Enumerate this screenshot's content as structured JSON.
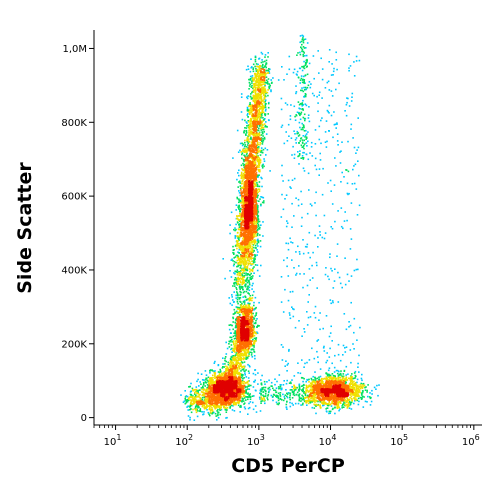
{
  "chart_data": {
    "type": "scatter",
    "title": "",
    "xlabel": "CD5 PerCP",
    "ylabel": "Side Scatter",
    "x_scale": "log",
    "xlim": [
      5,
      1300000
    ],
    "ylim": [
      -20000,
      1050000
    ],
    "x_ticks": [
      {
        "base": "10",
        "exp": "1",
        "value": 10
      },
      {
        "base": "10",
        "exp": "2",
        "value": 100
      },
      {
        "base": "10",
        "exp": "3",
        "value": 1000
      },
      {
        "base": "10",
        "exp": "4",
        "value": 10000
      },
      {
        "base": "10",
        "exp": "5",
        "value": 100000
      },
      {
        "base": "10",
        "exp": "6",
        "value": 1000000
      }
    ],
    "y_ticks": [
      {
        "label": "0",
        "value": 0
      },
      {
        "label": "200K",
        "value": 200000
      },
      {
        "label": "400K",
        "value": 400000
      },
      {
        "label": "600K",
        "value": 600000
      },
      {
        "label": "800K",
        "value": 800000
      },
      {
        "label": "1,0M",
        "value": 1000000
      }
    ],
    "grid": false,
    "colormap": "density (blue → cyan → green → yellow → red)",
    "colors": [
      "#1414c8",
      "#00c8ff",
      "#00e060",
      "#f0e000",
      "#ff7000",
      "#e00000"
    ],
    "populations": [
      {
        "x_center": 800,
        "y_center": 560000,
        "density": "high"
      },
      {
        "x_center": 600,
        "y_center": 240000,
        "density": "high"
      },
      {
        "x_center": 350,
        "y_center": 80000,
        "density": "high"
      },
      {
        "x_center": 12000,
        "y_center": 75000,
        "density": "high"
      },
      {
        "x_center": 5000,
        "y_center": 400000,
        "density": "sparse"
      }
    ]
  }
}
